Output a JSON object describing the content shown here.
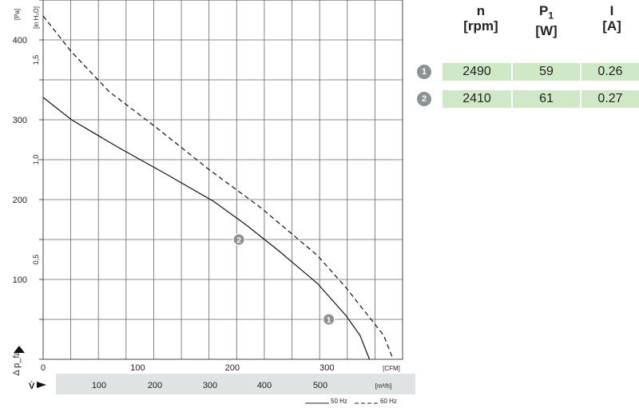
{
  "chart_data": {
    "type": "line",
    "y_axis_left": {
      "label": "Δ p_fa",
      "unit": "[Pa]",
      "ticks": [
        100,
        200,
        300,
        400
      ],
      "range": [
        0,
        450
      ]
    },
    "y_axis_inner": {
      "unit": "[in H₂O]",
      "ticks": [
        "0,5",
        "1,0",
        "1,5"
      ]
    },
    "x_axis_cfm": {
      "unit": "[CFM]",
      "ticks": [
        0,
        100,
        200,
        300
      ],
      "range": [
        0,
        380
      ]
    },
    "x_axis_m3h": {
      "label": "V̇",
      "unit": "[m³/h]",
      "ticks": [
        100,
        200,
        300,
        400,
        500
      ]
    },
    "grid": true,
    "series": [
      {
        "name": "50 Hz",
        "style": "solid",
        "x_cfm": [
          0,
          30,
          80,
          130,
          180,
          215,
          250,
          290,
          320,
          335,
          345
        ],
        "y_pa": [
          328,
          300,
          265,
          232,
          198,
          168,
          135,
          95,
          55,
          30,
          0
        ]
      },
      {
        "name": "60 Hz",
        "style": "dashed",
        "x_cfm": [
          0,
          30,
          70,
          120,
          175,
          230,
          290,
          320,
          340,
          360,
          370
        ],
        "y_pa": [
          430,
          385,
          335,
          290,
          238,
          190,
          130,
          90,
          60,
          30,
          0
        ]
      }
    ],
    "operating_points": [
      {
        "id": "1",
        "x_cfm": 302,
        "y_pa": 50
      },
      {
        "id": "2",
        "x_cfm": 207,
        "y_pa": 150
      }
    ]
  },
  "table": {
    "headers": [
      {
        "symbol": "n",
        "unit": "[rpm]"
      },
      {
        "symbol": "P",
        "sub": "1",
        "unit": "[W]"
      },
      {
        "symbol": "I",
        "unit": "[A]"
      }
    ],
    "rows": [
      {
        "id": "1",
        "n": "2490",
        "p1": "59",
        "i": "0.26"
      },
      {
        "id": "2",
        "n": "2410",
        "p1": "61",
        "i": "0.27"
      }
    ]
  },
  "legend": {
    "solid_label": "50 Hz",
    "dashed_label": "60 Hz"
  },
  "colors": {
    "grid": "#666666",
    "cell_bg": "#cfe9c6",
    "m3h_band": "#dfe3e4",
    "badge": "#8a9293"
  }
}
